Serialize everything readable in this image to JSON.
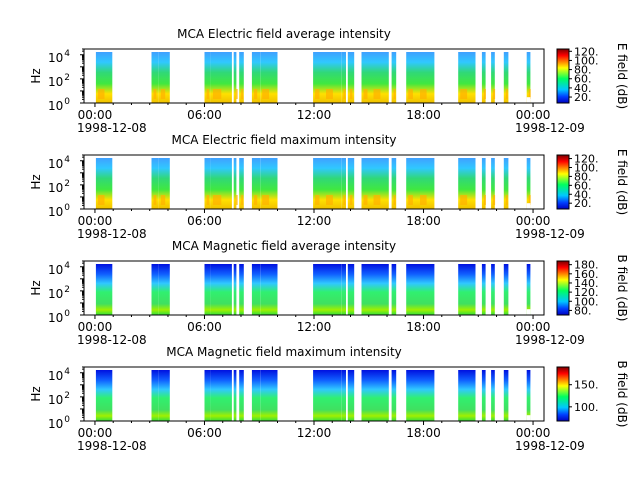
{
  "chart_data": [
    {
      "type": "heatmap",
      "title": "MCA  Electric field average intensity",
      "ylabel": "Hz",
      "y_scale": "log",
      "y_ticks": [
        {
          "value": 1,
          "base": "10",
          "exp": "0"
        },
        {
          "value": 100,
          "base": "10",
          "exp": "2"
        },
        {
          "value": 10000,
          "base": "10",
          "exp": "4"
        }
      ],
      "x_ticks": [
        "00:00",
        "06:00",
        "12:00",
        "18:00",
        "00:00"
      ],
      "x_tick_hours": [
        0,
        6,
        12,
        18,
        24
      ],
      "date_labels": [
        "1998-12-08",
        "1998-12-09"
      ],
      "colorbar_label": "E field (dB)",
      "colorbar_ticks": [
        "20.",
        "40.",
        "60.",
        "80.",
        "100.",
        "120."
      ],
      "colorbar_values": [
        20,
        40,
        60,
        80,
        100,
        120
      ],
      "colorbar_range": [
        7,
        125
      ]
    },
    {
      "type": "heatmap",
      "title": "MCA  Electric field maximum intensity",
      "ylabel": "Hz",
      "y_scale": "log",
      "y_ticks": [
        {
          "value": 1,
          "base": "10",
          "exp": "0"
        },
        {
          "value": 100,
          "base": "10",
          "exp": "2"
        },
        {
          "value": 10000,
          "base": "10",
          "exp": "4"
        }
      ],
      "x_ticks": [
        "00:00",
        "06:00",
        "12:00",
        "18:00",
        "00:00"
      ],
      "x_tick_hours": [
        0,
        6,
        12,
        18,
        24
      ],
      "date_labels": [
        "1998-12-08",
        "1998-12-09"
      ],
      "colorbar_label": "E field (dB)",
      "colorbar_ticks": [
        "20.",
        "40.",
        "60.",
        "80.",
        "100.",
        "120."
      ],
      "colorbar_values": [
        20,
        40,
        60,
        80,
        100,
        120
      ],
      "colorbar_range": [
        7,
        128
      ]
    },
    {
      "type": "heatmap",
      "title": "MCA  Magnetic field average intensity",
      "ylabel": "Hz",
      "y_scale": "log",
      "y_ticks": [
        {
          "value": 1,
          "base": "10",
          "exp": "0"
        },
        {
          "value": 100,
          "base": "10",
          "exp": "2"
        },
        {
          "value": 10000,
          "base": "10",
          "exp": "4"
        }
      ],
      "x_ticks": [
        "00:00",
        "06:00",
        "12:00",
        "18:00",
        "00:00"
      ],
      "x_tick_hours": [
        0,
        6,
        12,
        18,
        24
      ],
      "date_labels": [
        "1998-12-08",
        "1998-12-09"
      ],
      "colorbar_label": "B field (dB)",
      "colorbar_ticks": [
        "80.",
        "100.",
        "120.",
        "140.",
        "160.",
        "180."
      ],
      "colorbar_values": [
        80,
        100,
        120,
        140,
        160,
        180
      ],
      "colorbar_range": [
        70,
        188
      ]
    },
    {
      "type": "heatmap",
      "title": "MCA  Magnetic field maximum intensity",
      "ylabel": "Hz",
      "y_scale": "log",
      "y_ticks": [
        {
          "value": 1,
          "base": "10",
          "exp": "0"
        },
        {
          "value": 100,
          "base": "10",
          "exp": "2"
        },
        {
          "value": 10000,
          "base": "10",
          "exp": "4"
        }
      ],
      "x_ticks": [
        "00:00",
        "06:00",
        "12:00",
        "18:00",
        "00:00"
      ],
      "x_tick_hours": [
        0,
        6,
        12,
        18,
        24
      ],
      "date_labels": [
        "1998-12-08",
        "1998-12-09"
      ],
      "colorbar_label": "B field (dB)",
      "colorbar_ticks": [
        "100.",
        "150."
      ],
      "colorbar_values": [
        100,
        150
      ],
      "colorbar_range": [
        68,
        190
      ]
    }
  ],
  "data_coverage": {
    "x_range_hours": [
      -0.6,
      24.6
    ],
    "y_range_hz": [
      1,
      30000
    ],
    "data_top_hz": 17000,
    "segments_hours": [
      [
        0.05,
        0.95
      ],
      [
        3.1,
        3.5
      ],
      [
        3.5,
        4.1
      ],
      [
        6.0,
        6.35
      ],
      [
        6.35,
        7.5
      ],
      [
        7.6,
        7.75
      ],
      [
        7.9,
        8.15
      ],
      [
        8.6,
        9.05
      ],
      [
        9.05,
        10.0
      ],
      [
        11.95,
        12.55
      ],
      [
        12.55,
        13.5
      ],
      [
        13.5,
        13.75
      ],
      [
        13.85,
        14.2
      ],
      [
        14.6,
        15.15
      ],
      [
        15.15,
        16.1
      ],
      [
        16.25,
        16.5
      ],
      [
        17.05,
        17.7
      ],
      [
        17.7,
        18.6
      ],
      [
        19.9,
        20.85
      ],
      [
        21.2,
        21.4
      ],
      [
        21.7,
        21.9
      ],
      [
        22.4,
        22.65
      ],
      [
        23.65,
        23.85
      ]
    ],
    "gaps_below_hz": [
      {
        "from_hours": 23.65,
        "to_hours": 23.85,
        "hz": 3
      }
    ]
  }
}
